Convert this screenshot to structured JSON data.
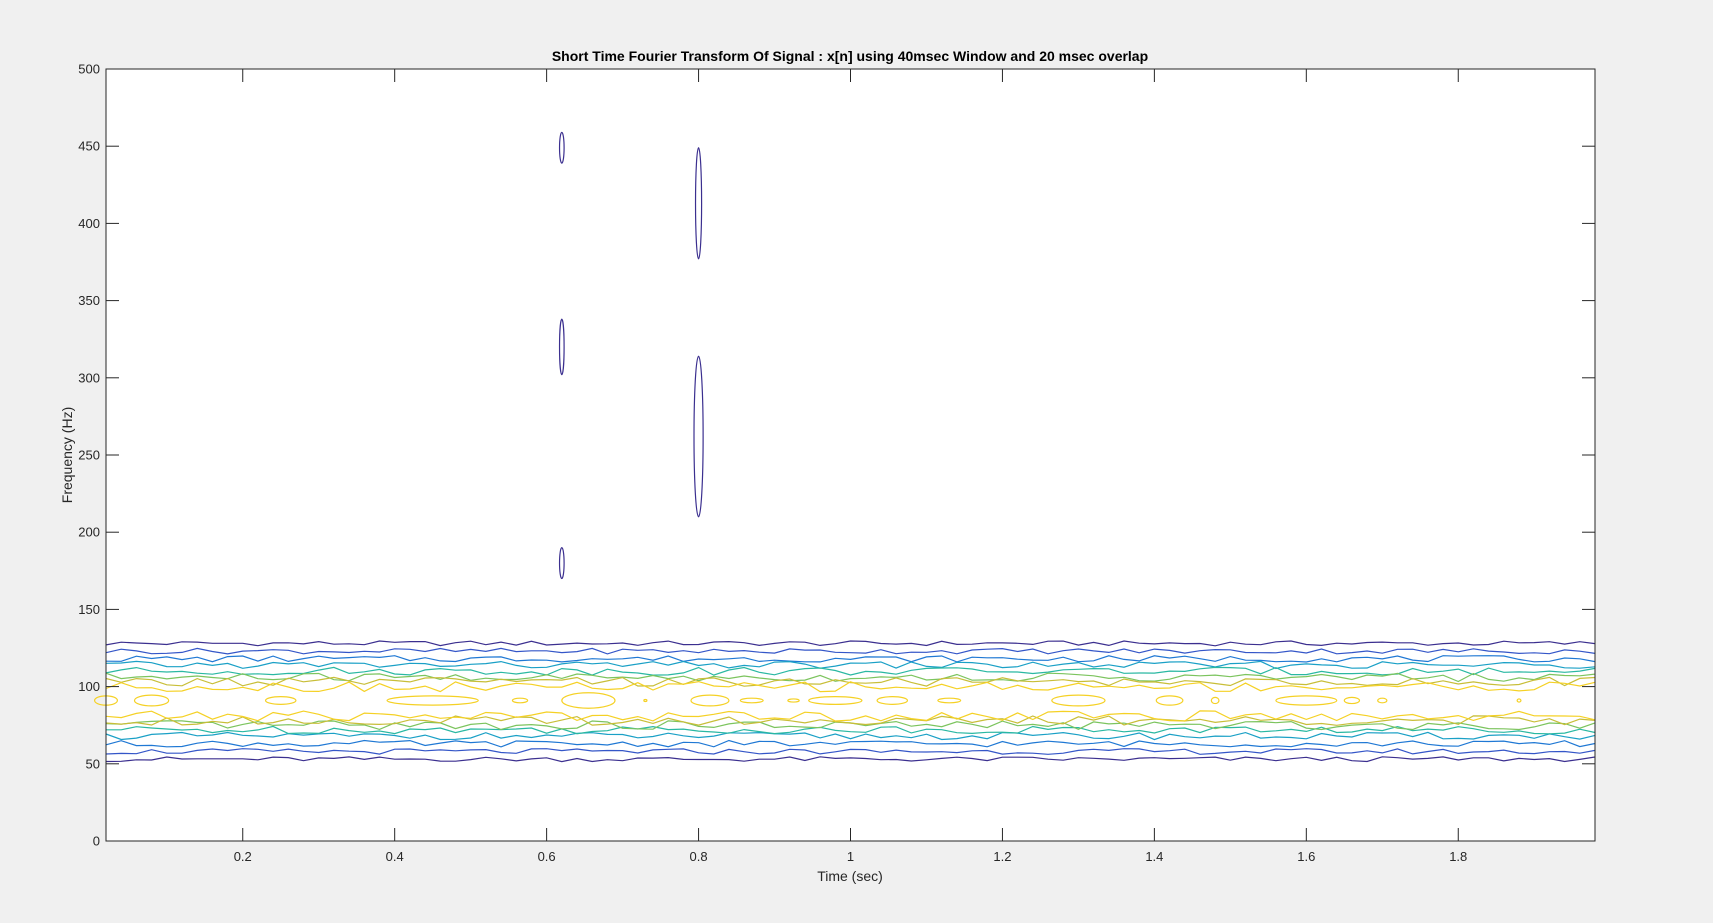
{
  "chart_data": {
    "type": "contour",
    "title": "Short Time Fourier Transform Of Signal : x[n] using 40msec Window and 20 msec overlap",
    "xlabel": "Time (sec)",
    "ylabel": "Frequency (Hz)",
    "xlim": [
      0.02,
      1.98
    ],
    "ylim": [
      0,
      500
    ],
    "xticks": [
      0.2,
      0.4,
      0.6,
      0.8,
      1,
      1.2,
      1.4,
      1.6,
      1.8
    ],
    "yticks": [
      0,
      50,
      100,
      150,
      200,
      250,
      300,
      350,
      400,
      450,
      500
    ],
    "grid": false,
    "colormap": "parula",
    "band_levels": [
      {
        "color": "#3b2f8f",
        "upper_hz": 128,
        "lower_hz": 53
      },
      {
        "color": "#3456c8",
        "upper_hz": 123,
        "lower_hz": 58
      },
      {
        "color": "#1f78d4",
        "upper_hz": 118,
        "lower_hz": 63
      },
      {
        "color": "#1aa0c6",
        "upper_hz": 114,
        "lower_hz": 68
      },
      {
        "color": "#2ab8a2",
        "upper_hz": 110,
        "lower_hz": 72
      },
      {
        "color": "#7cc45e",
        "upper_hz": 106,
        "lower_hz": 75
      },
      {
        "color": "#c8be38",
        "upper_hz": 103,
        "lower_hz": 78
      },
      {
        "color": "#f5d125",
        "upper_hz": 100,
        "lower_hz": 81
      }
    ],
    "peak_islands": [
      {
        "t": 0.02,
        "f": 91,
        "dt": 0.03,
        "df": 6
      },
      {
        "t": 0.08,
        "f": 91,
        "dt": 0.045,
        "df": 7
      },
      {
        "t": 0.25,
        "f": 91,
        "dt": 0.04,
        "df": 5
      },
      {
        "t": 0.45,
        "f": 91,
        "dt": 0.12,
        "df": 6
      },
      {
        "t": 0.565,
        "f": 91,
        "dt": 0.02,
        "df": 3
      },
      {
        "t": 0.655,
        "f": 91,
        "dt": 0.07,
        "df": 10
      },
      {
        "t": 0.73,
        "f": 91,
        "dt": 0.004,
        "df": 1
      },
      {
        "t": 0.815,
        "f": 91,
        "dt": 0.05,
        "df": 7
      },
      {
        "t": 0.87,
        "f": 91,
        "dt": 0.03,
        "df": 3
      },
      {
        "t": 0.925,
        "f": 91,
        "dt": 0.015,
        "df": 2
      },
      {
        "t": 0.98,
        "f": 91,
        "dt": 0.07,
        "df": 5
      },
      {
        "t": 1.055,
        "f": 91,
        "dt": 0.04,
        "df": 5
      },
      {
        "t": 1.13,
        "f": 91,
        "dt": 0.03,
        "df": 3
      },
      {
        "t": 1.3,
        "f": 91,
        "dt": 0.07,
        "df": 7
      },
      {
        "t": 1.42,
        "f": 91,
        "dt": 0.035,
        "df": 6
      },
      {
        "t": 1.48,
        "f": 91,
        "dt": 0.01,
        "df": 4
      },
      {
        "t": 1.6,
        "f": 91,
        "dt": 0.08,
        "df": 6
      },
      {
        "t": 1.66,
        "f": 91,
        "dt": 0.02,
        "df": 4
      },
      {
        "t": 1.7,
        "f": 91,
        "dt": 0.012,
        "df": 3
      },
      {
        "t": 1.88,
        "f": 91,
        "dt": 0.005,
        "df": 2
      }
    ],
    "high_freq_islands": [
      {
        "t": 0.62,
        "f": 449,
        "dt": 0.003,
        "df": 10
      },
      {
        "t": 0.62,
        "f": 320,
        "dt": 0.003,
        "df": 18
      },
      {
        "t": 0.62,
        "f": 180,
        "dt": 0.003,
        "df": 10
      },
      {
        "t": 0.8,
        "f": 413,
        "dt": 0.004,
        "df": 36
      },
      {
        "t": 0.8,
        "f": 262,
        "dt": 0.006,
        "df": 52
      }
    ]
  }
}
